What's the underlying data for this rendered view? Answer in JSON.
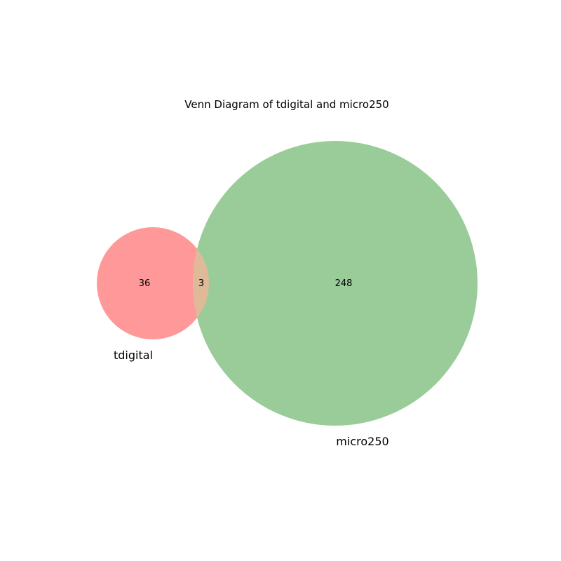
{
  "diagram": {
    "title": "Venn Diagram of tdigital and micro250",
    "sets": [
      {
        "label": "tdigital",
        "only_count": "36",
        "color": "#ff9999"
      },
      {
        "label": "micro250",
        "only_count": "248",
        "color": "#99cc99"
      }
    ],
    "intersection": {
      "count": "3",
      "color": "#dfba99"
    }
  }
}
